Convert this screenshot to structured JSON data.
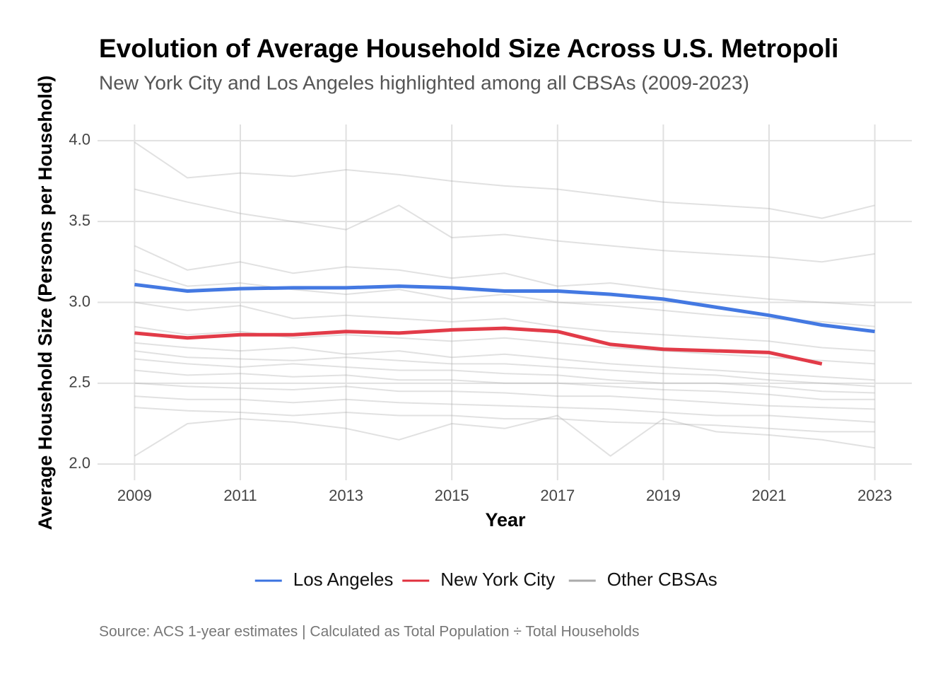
{
  "chart_data": {
    "type": "line",
    "title": "Evolution of Average Household Size Across U.S. Metropoli",
    "subtitle": "New York City and Los Angeles highlighted among all CBSAs (2009-2023)",
    "x_label": "Year",
    "y_label": "Average Household Size (Persons per Household)",
    "caption": "Source: ACS 1-year estimates | Calculated as Total Population ÷ Total Households",
    "x": [
      2009,
      2010,
      2011,
      2012,
      2013,
      2014,
      2015,
      2016,
      2017,
      2018,
      2019,
      2020,
      2021,
      2022,
      2023
    ],
    "xlim": [
      2008.3,
      2023.7
    ],
    "xticks": [
      2009,
      2011,
      2013,
      2015,
      2017,
      2019,
      2021,
      2023
    ],
    "ylim": [
      1.9,
      4.1
    ],
    "yticks": [
      {
        "value": 2,
        "label": "2.0"
      },
      2.5,
      {
        "value": 3,
        "label": "3.0"
      },
      3.5,
      {
        "value": 4,
        "label": "4.0"
      }
    ],
    "grid": true,
    "legend_position": "bottom",
    "series": [
      {
        "name": "Los Angeles",
        "color": "#3a72e0",
        "values": [
          3.11,
          3.07,
          3.085,
          3.09,
          3.09,
          3.1,
          3.09,
          3.07,
          3.07,
          3.05,
          3.02,
          2.97,
          2.92,
          2.86,
          2.82
        ]
      },
      {
        "name": "New York City",
        "color": "#e0303e",
        "values": [
          2.81,
          2.78,
          2.8,
          2.8,
          2.82,
          2.81,
          2.83,
          2.84,
          2.82,
          2.74,
          2.71,
          2.7,
          2.69,
          2.62,
          null
        ]
      },
      {
        "name": "Other CBSAs",
        "color": "#aaaaaa",
        "values": [
          3.99,
          3.77,
          3.8,
          3.78,
          3.82,
          3.79,
          3.75,
          3.72,
          3.7,
          3.66,
          3.62,
          3.6,
          3.58,
          3.52,
          3.6
        ]
      },
      {
        "name": "Other CBSAs",
        "color": "#aaaaaa",
        "values": [
          3.7,
          3.62,
          3.55,
          3.5,
          3.45,
          3.6,
          3.4,
          3.42,
          3.38,
          3.35,
          3.32,
          3.3,
          3.28,
          3.25,
          3.3
        ]
      },
      {
        "name": "Other CBSAs",
        "color": "#aaaaaa",
        "values": [
          3.35,
          3.2,
          3.25,
          3.18,
          3.22,
          3.2,
          3.15,
          3.18,
          3.1,
          3.12,
          3.08,
          3.05,
          3.02,
          3.0,
          2.98
        ]
      },
      {
        "name": "Other CBSAs",
        "color": "#aaaaaa",
        "values": [
          3.2,
          3.1,
          3.12,
          3.08,
          3.05,
          3.08,
          3.02,
          3.05,
          3.0,
          2.98,
          2.95,
          2.92,
          2.9,
          2.88,
          2.85
        ]
      },
      {
        "name": "Other CBSAs",
        "color": "#aaaaaa",
        "values": [
          3.0,
          2.95,
          2.98,
          2.9,
          2.92,
          2.9,
          2.88,
          2.9,
          2.85,
          2.82,
          2.8,
          2.78,
          2.76,
          2.72,
          2.7
        ]
      },
      {
        "name": "Other CBSAs",
        "color": "#aaaaaa",
        "values": [
          2.85,
          2.8,
          2.82,
          2.78,
          2.8,
          2.78,
          2.76,
          2.78,
          2.75,
          2.72,
          2.7,
          2.68,
          2.66,
          2.64,
          2.62
        ]
      },
      {
        "name": "Other CBSAs",
        "color": "#aaaaaa",
        "values": [
          2.75,
          2.72,
          2.7,
          2.72,
          2.68,
          2.7,
          2.66,
          2.68,
          2.65,
          2.62,
          2.6,
          2.58,
          2.56,
          2.54,
          2.52
        ]
      },
      {
        "name": "Other CBSAs",
        "color": "#aaaaaa",
        "values": [
          2.7,
          2.66,
          2.65,
          2.64,
          2.66,
          2.64,
          2.62,
          2.62,
          2.6,
          2.58,
          2.56,
          2.55,
          2.52,
          2.5,
          2.48
        ]
      },
      {
        "name": "Other CBSAs",
        "color": "#aaaaaa",
        "values": [
          2.65,
          2.62,
          2.6,
          2.62,
          2.6,
          2.58,
          2.58,
          2.56,
          2.55,
          2.52,
          2.5,
          2.5,
          2.48,
          2.45,
          2.44
        ]
      },
      {
        "name": "Other CBSAs",
        "color": "#aaaaaa",
        "values": [
          2.58,
          2.55,
          2.56,
          2.54,
          2.55,
          2.52,
          2.52,
          2.5,
          2.5,
          2.48,
          2.46,
          2.45,
          2.43,
          2.4,
          2.4
        ]
      },
      {
        "name": "Other CBSAs",
        "color": "#aaaaaa",
        "values": [
          2.5,
          2.48,
          2.47,
          2.46,
          2.48,
          2.45,
          2.45,
          2.44,
          2.42,
          2.42,
          2.4,
          2.38,
          2.36,
          2.35,
          2.34
        ]
      },
      {
        "name": "Other CBSAs",
        "color": "#aaaaaa",
        "values": [
          2.42,
          2.4,
          2.4,
          2.38,
          2.4,
          2.38,
          2.37,
          2.36,
          2.35,
          2.34,
          2.32,
          2.3,
          2.3,
          2.28,
          2.26
        ]
      },
      {
        "name": "Other CBSAs",
        "color": "#aaaaaa",
        "values": [
          2.35,
          2.33,
          2.32,
          2.3,
          2.32,
          2.3,
          2.3,
          2.28,
          2.28,
          2.26,
          2.25,
          2.24,
          2.22,
          2.2,
          2.2
        ]
      },
      {
        "name": "Other CBSAs",
        "color": "#aaaaaa",
        "values": [
          2.05,
          2.25,
          2.28,
          2.26,
          2.22,
          2.15,
          2.25,
          2.22,
          2.3,
          2.05,
          2.28,
          2.2,
          2.18,
          2.15,
          2.1
        ]
      }
    ]
  }
}
